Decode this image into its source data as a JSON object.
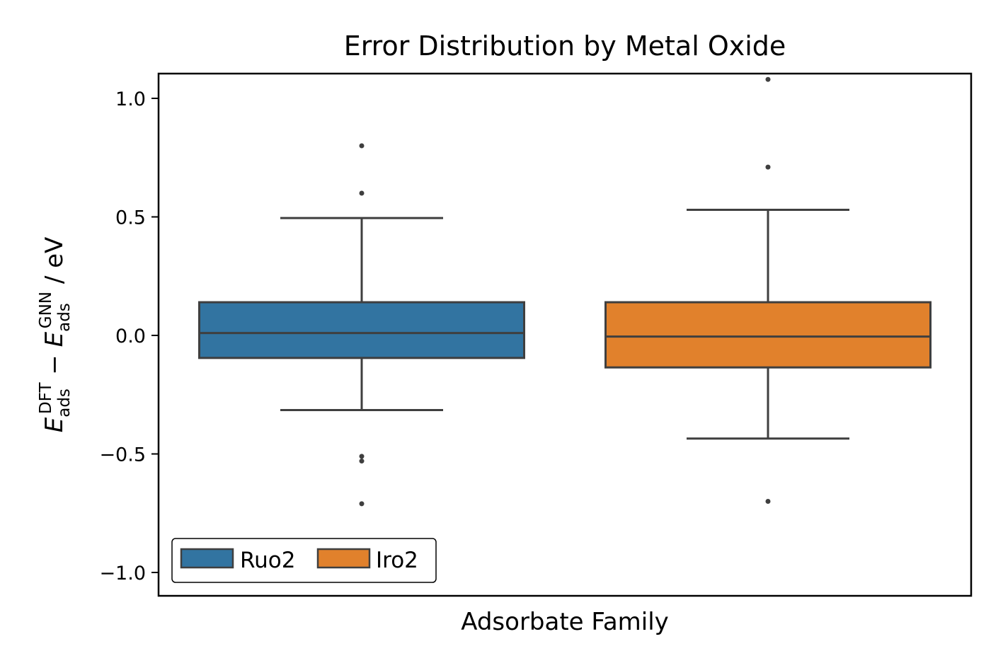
{
  "chart_data": {
    "type": "box",
    "title": "Error Distribution by Metal Oxide",
    "xlabel": "Adsorbate Family",
    "ylabel": {
      "E": "E",
      "sub": "ads",
      "sup_dft": "DFT",
      "minus": " − ",
      "sup_gnn": "GNN",
      "unit": " / eV"
    },
    "ylim": [
      -1.1,
      1.1
    ],
    "yticks": [
      {
        "value": -1.0,
        "label": "−1.0"
      },
      {
        "value": -0.5,
        "label": "−0.5"
      },
      {
        "value": 0.0,
        "label": "0.0"
      },
      {
        "value": 0.5,
        "label": "0.5"
      },
      {
        "value": 1.0,
        "label": "1.0"
      }
    ],
    "grid": false,
    "legend_position": "lower-left",
    "series": [
      {
        "name": "Ruo2",
        "color": "#3274a1",
        "q1": -0.095,
        "median": 0.01,
        "q3": 0.14,
        "whisker_low": -0.315,
        "whisker_high": 0.495,
        "outliers": [
          0.8,
          0.6,
          -0.51,
          -0.53,
          -0.71
        ]
      },
      {
        "name": "Iro2",
        "color": "#e1812c",
        "q1": -0.135,
        "median": -0.005,
        "q3": 0.14,
        "whisker_low": -0.435,
        "whisker_high": 0.53,
        "outliers": [
          1.08,
          0.71,
          -0.7
        ]
      }
    ]
  }
}
